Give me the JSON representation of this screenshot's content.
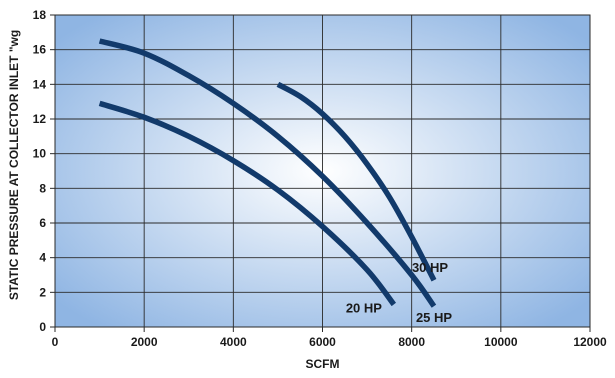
{
  "chart_data": {
    "type": "line",
    "xlabel": "SCFM",
    "ylabel": "STATIC PRESSURE AT COLLECTOR INLET \"wg",
    "xlim": [
      0,
      12000
    ],
    "ylim": [
      0,
      18
    ],
    "xticks": [
      0,
      2000,
      4000,
      6000,
      8000,
      10000,
      12000
    ],
    "yticks": [
      0,
      2,
      4,
      6,
      8,
      10,
      12,
      14,
      16,
      18
    ],
    "grid": true,
    "colors": {
      "plot_center": "#ffffff",
      "plot_edge": "#8fb5e3",
      "grid": "#2a2a2a",
      "line": "#123a6b"
    },
    "series": [
      {
        "name": "20 HP",
        "x": [
          1000,
          2000,
          3000,
          4000,
          5000,
          6000,
          7000,
          7600
        ],
        "y": [
          12.9,
          12.1,
          11.0,
          9.6,
          7.9,
          5.8,
          3.3,
          1.3
        ]
      },
      {
        "name": "25 HP",
        "x": [
          1000,
          2000,
          3000,
          4000,
          5000,
          6000,
          7000,
          8000,
          8500
        ],
        "y": [
          16.5,
          15.8,
          14.5,
          12.9,
          11.0,
          8.7,
          6.0,
          3.0,
          1.2
        ]
      },
      {
        "name": "30 HP",
        "x": [
          5000,
          5500,
          6000,
          6500,
          7000,
          7500,
          8000,
          8500
        ],
        "y": [
          14.0,
          13.3,
          12.3,
          11.0,
          9.4,
          7.5,
          5.2,
          2.7
        ]
      }
    ]
  }
}
